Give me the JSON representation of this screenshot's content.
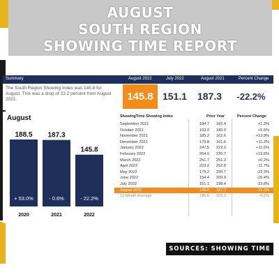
{
  "title": {
    "line1": "AUGUST",
    "line2": "SOUTH REGION",
    "line3": "SHOWING TIME REPORT"
  },
  "summary": {
    "headers": [
      "Summary",
      "August 2022",
      "July 2022",
      "August 2021",
      "Percent Change"
    ],
    "text": "The South Region Showing Index was 145.8 for August. This was a drop of 22.2 percent from August 2021.",
    "values": [
      "145.8",
      "151.1",
      "187.3",
      "-22.2%"
    ]
  },
  "colors": {
    "navy": "#1e2f5c",
    "orange": "#f28c1a",
    "gold": "#e8b21c",
    "gray": "#c8c8c8"
  },
  "chart_data": [
    {
      "type": "bar",
      "title": "August",
      "categories": [
        "2020",
        "2021",
        "2022"
      ],
      "values": [
        188.5,
        187.3,
        145.8
      ],
      "changes": [
        "+ 53.0%",
        "- 0.6%",
        "- 22.2%"
      ],
      "value_labels": [
        "188.5",
        "187.3",
        "145.8"
      ]
    },
    {
      "type": "table",
      "headers": [
        "ShowingTime Showing Index",
        "Prior Year",
        "Percent Change"
      ],
      "rows": [
        [
          "September 2021",
          "184.7",
          "182.4",
          "+1.3%"
        ],
        [
          "October 2021",
          "193.0",
          "183.0",
          "+5.5%"
        ],
        [
          "November 2021",
          "185.2",
          "162.6",
          "+13.9%"
        ],
        [
          "December 2021",
          "179.8",
          "161.6",
          "+11.3%"
        ],
        [
          "January 2022",
          "247.5",
          "222.0",
          "+11.5%"
        ],
        [
          "February 2022",
          "264.0",
          "220.7",
          "+19.6%"
        ],
        [
          "March 2022",
          "251.7",
          "251.2",
          "+0.2%"
        ],
        [
          "April 2022",
          "223.2",
          "252.8",
          "-11.7%"
        ],
        [
          "May 2022",
          "179.2",
          "230.7",
          "-22.3%"
        ],
        [
          "June 2022",
          "154.4",
          "209.9",
          "-26.4%"
        ],
        [
          "July 2022",
          "151.1",
          "198.4",
          "-23.8%"
        ],
        [
          "August 2022",
          "145.8",
          "187.3",
          "-22.2%"
        ]
      ],
      "average_row": [
        "12-Month Average",
        "196.6",
        "205.2",
        "-4.2%"
      ]
    }
  ],
  "source": "SOURCES: SHOWING TIME"
}
